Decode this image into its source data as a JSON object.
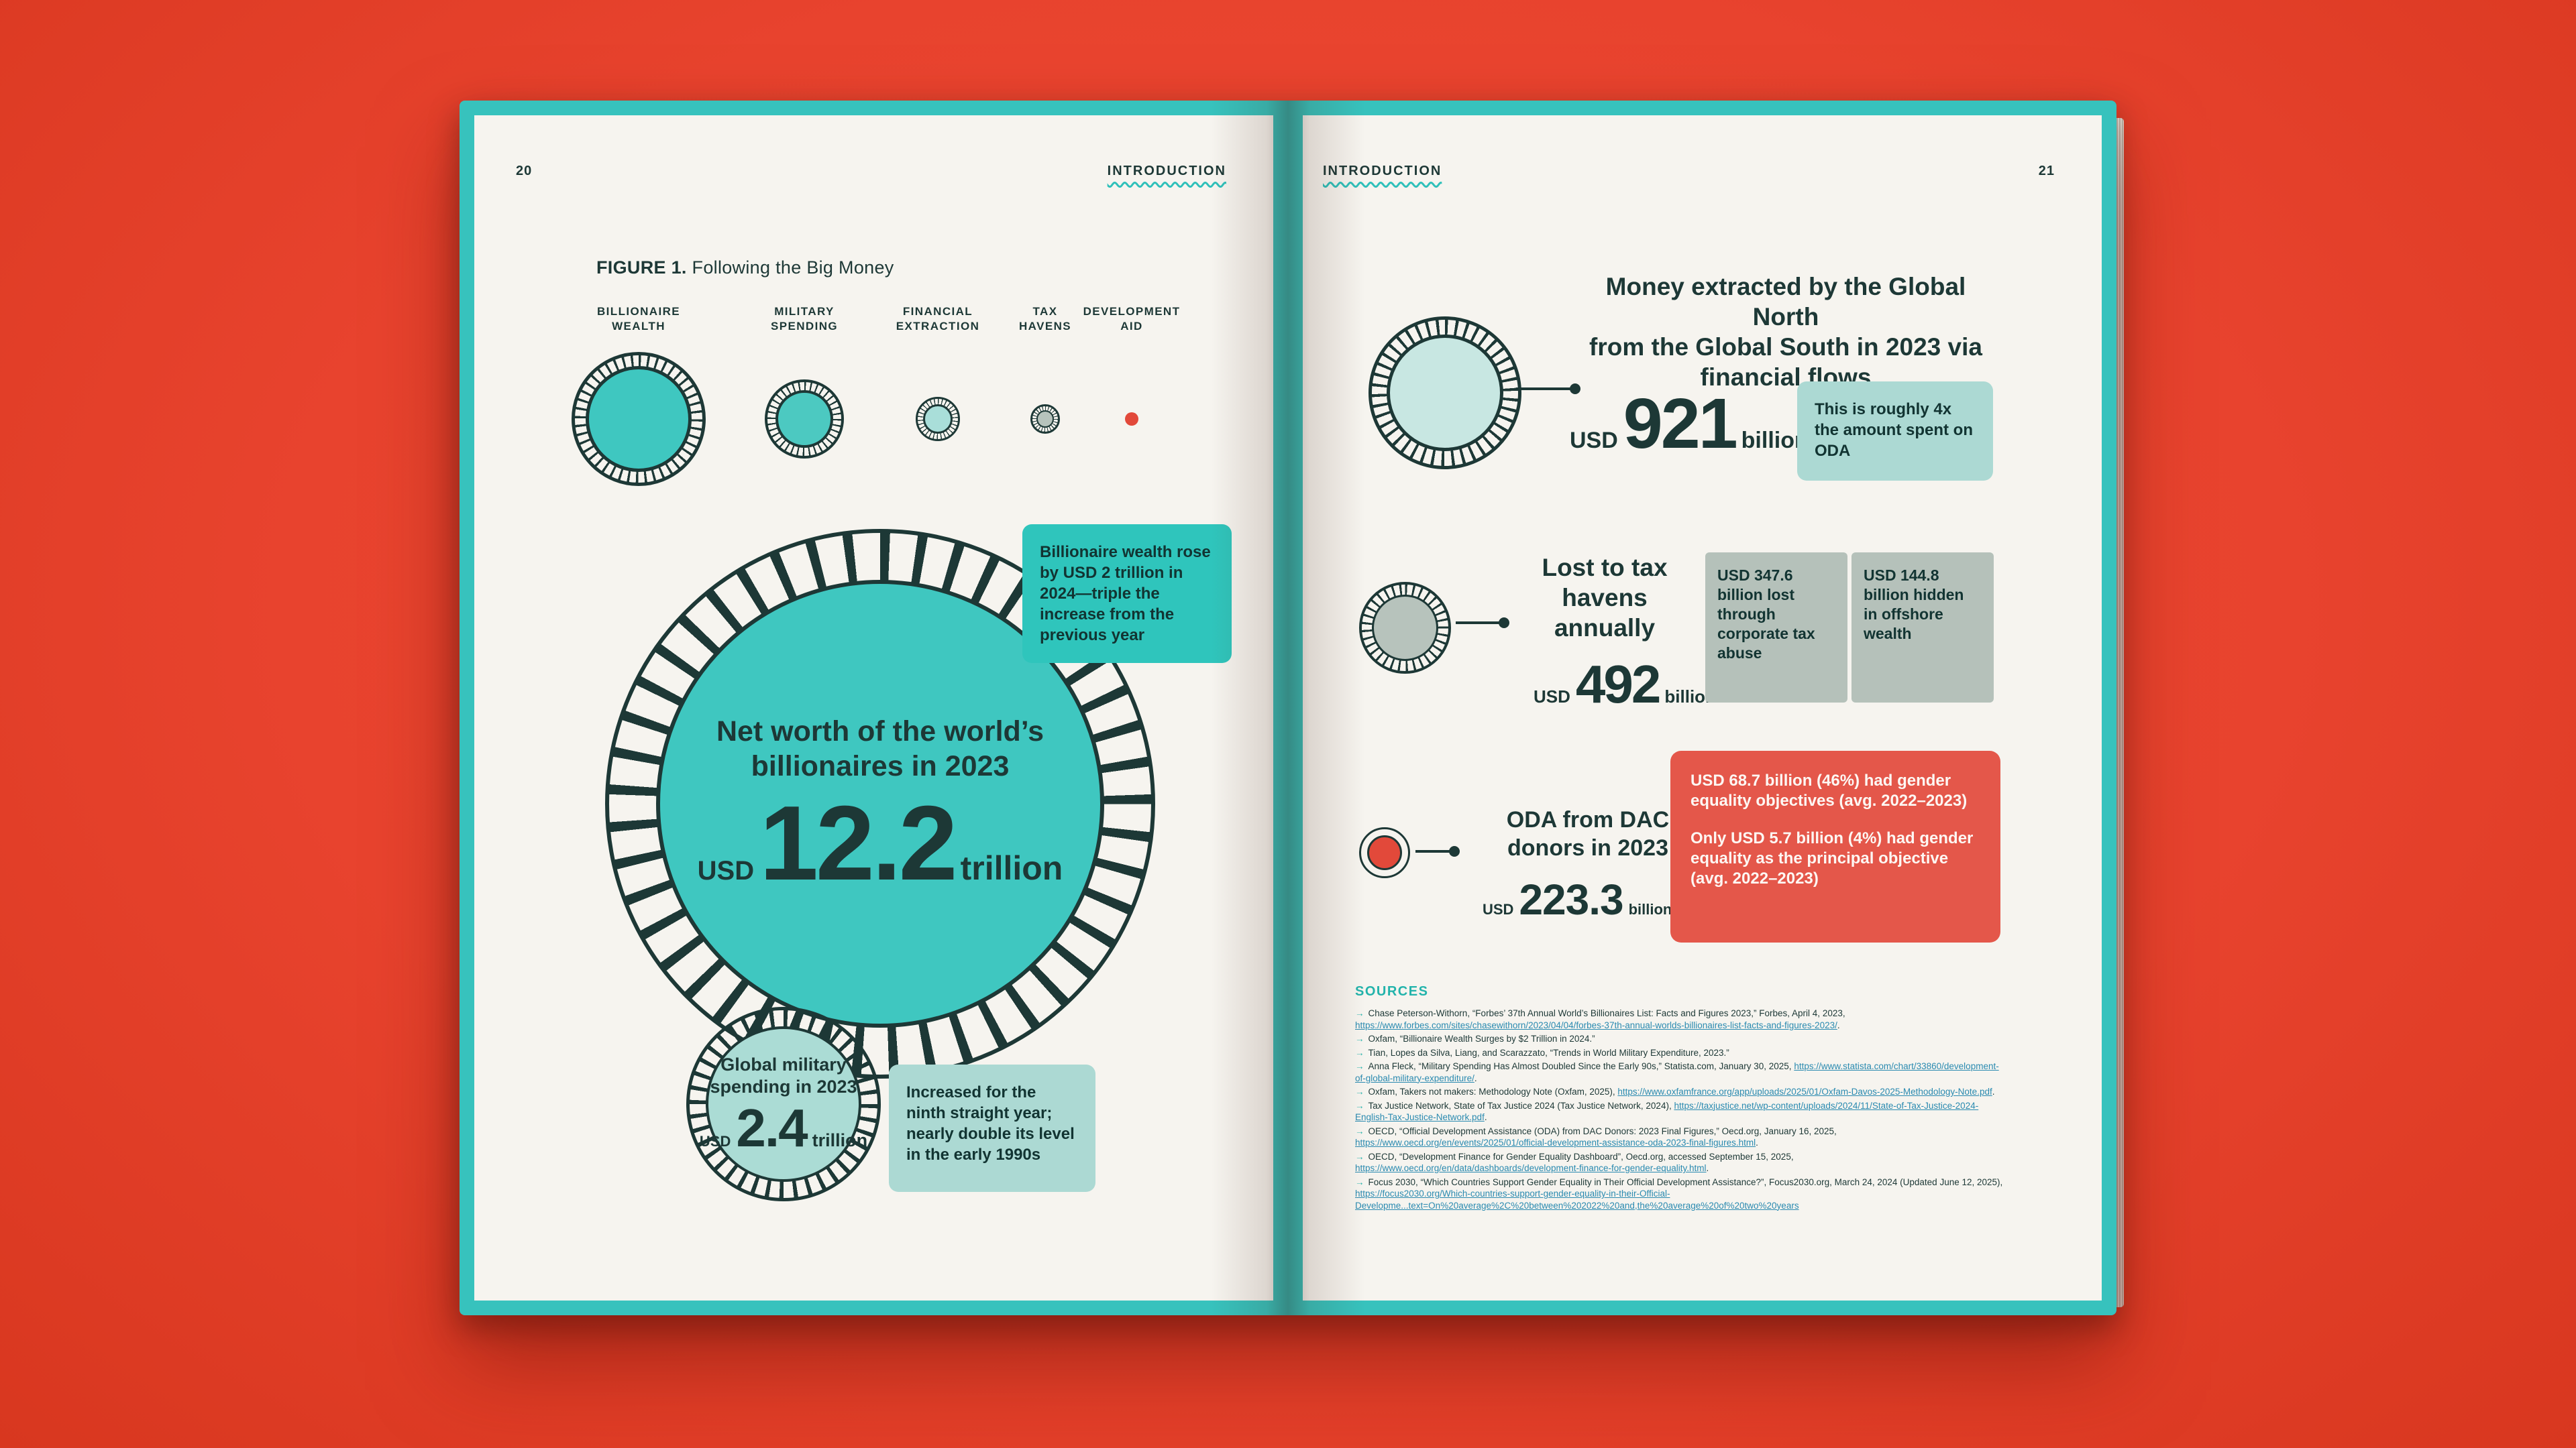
{
  "meta": {
    "left_page_number": "20",
    "right_page_number": "21",
    "section_label": "INTRODUCTION"
  },
  "colors": {
    "background_red": "#e8432e",
    "page_teal_border": "#37c2bd",
    "accent_teal": "#3fc7c0",
    "light_teal": "#acd9d3",
    "sage_gray": "#b5c1ba",
    "alert_red": "#e4574a",
    "ink": "#1d3836"
  },
  "figure": {
    "prefix": "FIGURE 1.",
    "rest": " Following the Big Money"
  },
  "legend": {
    "items": [
      {
        "line1": "BILLIONAIRE",
        "line2": "WEALTH"
      },
      {
        "line1": "MILITARY",
        "line2": "SPENDING"
      },
      {
        "line1": "FINANCIAL",
        "line2": "EXTRACTION"
      },
      {
        "line1": "TAX",
        "line2": "HAVENS"
      },
      {
        "line1": "DEVELOPMENT",
        "line2": "AID"
      }
    ]
  },
  "billionaire_circle": {
    "heading_line1": "Net worth of the world’s",
    "heading_line2": "billionaires in 2023",
    "currency": "USD",
    "value": "12.2",
    "unit": "trillion"
  },
  "billionaire_callout": "Billionaire wealth rose by USD 2 trillion in 2024—triple the increase from the previous year",
  "military_circle": {
    "heading_line1": "Global military",
    "heading_line2": "spending in 2023",
    "currency": "USD",
    "value": "2.4",
    "unit": "trillion"
  },
  "military_callout": "Increased for the ninth straight year; nearly double its level in the early 1990s",
  "extraction": {
    "heading_lines": [
      "Money extracted by the Global North",
      "from the Global South in 2023 via",
      "financial flows"
    ],
    "currency": "USD",
    "value": "921",
    "unit": "billion",
    "callout": "This is roughly 4x the amount spent on ODA"
  },
  "tax": {
    "heading_lines": [
      "Lost to tax",
      "havens",
      "annually"
    ],
    "currency": "USD",
    "value": "492",
    "unit": "billion",
    "box1": "USD 347.6 billion lost through corporate tax abuse",
    "box2": "USD 144.8 billion hidden in offshore wealth"
  },
  "oda": {
    "heading_lines": [
      "ODA from DAC",
      "donors in 2023"
    ],
    "currency": "USD",
    "value": "223.3",
    "unit": "billion",
    "callout1": "USD 68.7 billion (46%) had gender equality objectives (avg. 2022–2023)",
    "callout2": "Only USD 5.7 billion (4%) had gender equality as the principal objective (avg. 2022–2023)"
  },
  "sources": {
    "title": "SOURCES",
    "marker": "→",
    "items": [
      [
        {
          "t": "Chase Peterson-Withorn, “Forbes’ 37th Annual World’s Billionaires List: Facts and Figures 2023,” Forbes, April 4, 2023, "
        },
        {
          "t": "https://www.forbes.com/sites/chasewithorn/2023/04/04/forbes-37th-annual-worlds-billionaires-list-facts-and-figures-2023/",
          "link": true
        },
        {
          "t": "."
        }
      ],
      [
        {
          "t": "Oxfam, “Billionaire Wealth Surges by $2 Trillion in 2024.”"
        }
      ],
      [
        {
          "t": "Tian, Lopes da Silva, Liang, and Scarazzato, “Trends in World Military Expenditure, 2023.”"
        }
      ],
      [
        {
          "t": "Anna Fleck, “Military Spending Has Almost Doubled Since the Early 90s,” Statista.com, January 30, 2025, "
        },
        {
          "t": "https://www.statista.com/chart/33860/development-of-global-military-expenditure/",
          "link": true
        },
        {
          "t": "."
        }
      ],
      [
        {
          "t": "Oxfam, Takers not makers: Methodology Note (Oxfam, 2025), "
        },
        {
          "t": "https://www.oxfamfrance.org/app/uploads/2025/01/Oxfam-Davos-2025-Methodology-Note.pdf",
          "link": true
        },
        {
          "t": "."
        }
      ],
      [
        {
          "t": "Tax Justice Network, State of Tax Justice 2024 (Tax Justice Network, 2024), "
        },
        {
          "t": "https://taxjustice.net/wp-content/uploads/2024/11/State-of-Tax-Justice-2024-English-Tax-Justice-Network.pdf",
          "link": true
        },
        {
          "t": "."
        }
      ],
      [
        {
          "t": "OECD, “Official Development Assistance (ODA) from DAC Donors: 2023 Final Figures,” Oecd.org, January 16, 2025, "
        },
        {
          "t": "https://www.oecd.org/en/events/2025/01/official-development-assistance-oda-2023-final-figures.html",
          "link": true
        },
        {
          "t": "."
        }
      ],
      [
        {
          "t": "OECD, “Development Finance for Gender Equality Dashboard”, Oecd.org, accessed September 15, 2025, "
        },
        {
          "t": "https://www.oecd.org/en/data/dashboards/development-finance-for-gender-equality.html",
          "link": true
        },
        {
          "t": "."
        }
      ],
      [
        {
          "t": "Focus 2030, “Which Countries Support Gender Equality in Their Official Development Assistance?”, Focus2030.org, March 24, 2024 (Updated June 12, 2025), "
        },
        {
          "t": "https://focus2030.org/Which-countries-support-gender-equality-in-their-Official-Developme...text=On%20average%2C%20between%202022%20and,the%20average%20of%20two%20years",
          "link": true
        }
      ]
    ]
  }
}
